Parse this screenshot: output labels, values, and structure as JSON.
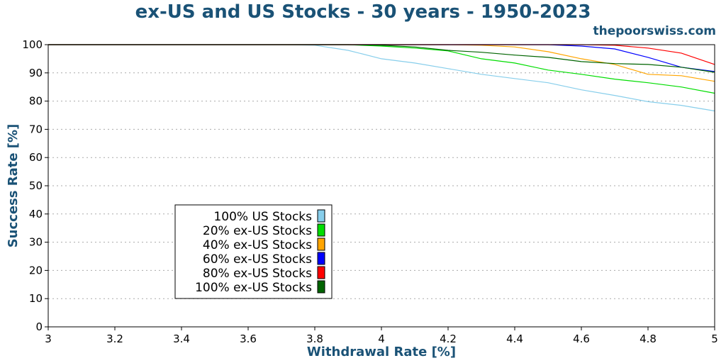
{
  "chart_data": {
    "type": "line",
    "title": "ex-US and US Stocks - 30 years - 1950-2023",
    "subtitle": "thepoorswiss.com",
    "xlabel": "Withdrawal Rate [%]",
    "ylabel": "Success Rate [%]",
    "xlim": [
      3,
      5
    ],
    "ylim": [
      0,
      100
    ],
    "xticks": [
      "3",
      "3.2",
      "3.4",
      "3.6",
      "3.8",
      "4",
      "4.2",
      "4.4",
      "4.6",
      "4.8",
      "5"
    ],
    "yticks": [
      "0",
      "10",
      "20",
      "30",
      "40",
      "50",
      "60",
      "70",
      "80",
      "90",
      "100"
    ],
    "grid": "horizontal dotted",
    "legend_position": "lower-left",
    "x": [
      3.0,
      3.1,
      3.2,
      3.3,
      3.4,
      3.5,
      3.6,
      3.7,
      3.8,
      3.9,
      4.0,
      4.1,
      4.2,
      4.3,
      4.4,
      4.5,
      4.6,
      4.7,
      4.8,
      4.9,
      5.0
    ],
    "series": [
      {
        "name": "100% US Stocks",
        "color": "#87ceeb",
        "values": [
          100,
          100,
          100,
          100,
          100,
          100,
          100,
          100,
          99.8,
          98,
          95,
          93.5,
          91.5,
          89.5,
          88,
          86.5,
          84,
          82,
          79.8,
          78.5,
          76.5
        ]
      },
      {
        "name": "20% ex-US Stocks",
        "color": "#00dd00",
        "values": [
          100,
          100,
          100,
          100,
          100,
          100,
          100,
          100,
          100,
          100,
          99.5,
          98.8,
          97.8,
          95,
          93.5,
          91,
          89.5,
          87.8,
          86.5,
          85,
          82.8
        ]
      },
      {
        "name": "40% ex-US Stocks",
        "color": "#ffa500",
        "values": [
          100,
          100,
          100,
          100,
          100,
          100,
          100,
          100,
          100,
          100,
          100,
          100,
          100,
          99.8,
          99.2,
          97.5,
          95,
          93,
          89.5,
          89,
          87
        ]
      },
      {
        "name": "60% ex-US Stocks",
        "color": "#0000ff",
        "values": [
          100,
          100,
          100,
          100,
          100,
          100,
          100,
          100,
          100,
          100,
          100,
          100,
          100,
          100,
          100,
          100,
          99.5,
          98.5,
          95.5,
          92,
          90.5
        ]
      },
      {
        "name": "80% ex-US Stocks",
        "color": "#ff0000",
        "values": [
          100,
          100,
          100,
          100,
          100,
          100,
          100,
          100,
          100,
          100,
          100,
          100,
          100,
          100,
          100,
          100,
          100,
          99.8,
          98.8,
          97,
          93
        ]
      },
      {
        "name": "100% ex-US Stocks",
        "color": "#006400",
        "values": [
          100,
          100,
          100,
          100,
          100,
          100,
          100,
          100,
          100,
          100,
          99.8,
          99.2,
          98,
          97.3,
          96.3,
          95.5,
          94,
          93.3,
          93,
          92,
          90.2
        ]
      }
    ]
  }
}
